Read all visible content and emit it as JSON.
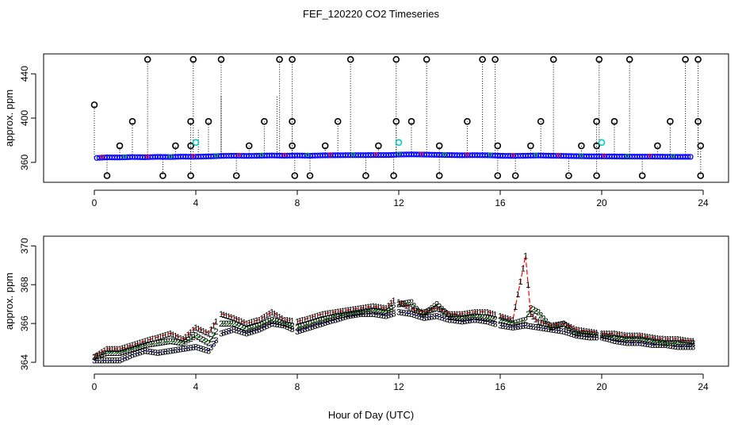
{
  "figure": {
    "title": "FEF_120220  CO2 Timeseries",
    "xlabel": "Hour of Day (UTC)"
  },
  "chart_data": [
    {
      "type": "scatter",
      "ylabel": "approx. ppm",
      "xlim": [
        -2,
        25
      ],
      "ylim": [
        342,
        458
      ],
      "x_ticks": [
        0,
        4,
        8,
        12,
        16,
        20,
        24
      ],
      "y_ticks": [
        360,
        400,
        440
      ],
      "base_series": {
        "name": "baseline",
        "color": "#0000ff",
        "points": [
          [
            0.1,
            364
          ],
          [
            0.5,
            364.5
          ],
          [
            1.0,
            364.4
          ],
          [
            1.5,
            364.8
          ],
          [
            2.0,
            364.6
          ],
          [
            2.5,
            365
          ],
          [
            3.0,
            364.8
          ],
          [
            3.5,
            365.2
          ],
          [
            3.9,
            365
          ],
          [
            4.2,
            365.2
          ],
          [
            4.6,
            365.4
          ],
          [
            5.0,
            365.8
          ],
          [
            5.5,
            366
          ],
          [
            6.0,
            365.8
          ],
          [
            6.5,
            366
          ],
          [
            7.0,
            366.2
          ],
          [
            7.5,
            366
          ],
          [
            8.0,
            366.2
          ],
          [
            8.5,
            366
          ],
          [
            9.0,
            366.3
          ],
          [
            9.5,
            366.4
          ],
          [
            10.0,
            366.5
          ],
          [
            10.5,
            366.5
          ],
          [
            11.0,
            366.6
          ],
          [
            11.6,
            366.6
          ],
          [
            12.0,
            367
          ],
          [
            12.5,
            367.2
          ],
          [
            13.0,
            367
          ],
          [
            13.5,
            366.8
          ],
          [
            14.0,
            366.6
          ],
          [
            14.5,
            366.4
          ],
          [
            15.0,
            366.5
          ],
          [
            15.5,
            366.4
          ],
          [
            16.0,
            366
          ],
          [
            16.5,
            365.8
          ],
          [
            17.0,
            366
          ],
          [
            17.5,
            366.2
          ],
          [
            18.0,
            366
          ],
          [
            18.5,
            365.8
          ],
          [
            19.0,
            365.6
          ],
          [
            19.5,
            365.4
          ],
          [
            20.0,
            365.4
          ],
          [
            20.5,
            365.3
          ],
          [
            21.0,
            365.2
          ],
          [
            21.5,
            365.2
          ],
          [
            22.0,
            365.2
          ],
          [
            22.5,
            365.1
          ],
          [
            23.0,
            365
          ],
          [
            23.6,
            365
          ]
        ]
      },
      "spikes": [
        {
          "x": 0.0,
          "y": 412
        },
        {
          "x": 2.1,
          "y": 453
        },
        {
          "x": 3.9,
          "y": 453
        },
        {
          "x": 5.0,
          "y": 453
        },
        {
          "x": 7.3,
          "y": 453
        },
        {
          "x": 7.8,
          "y": 453
        },
        {
          "x": 10.1,
          "y": 453
        },
        {
          "x": 11.9,
          "y": 453
        },
        {
          "x": 13.1,
          "y": 453
        },
        {
          "x": 15.3,
          "y": 453
        },
        {
          "x": 15.8,
          "y": 453
        },
        {
          "x": 18.1,
          "y": 453
        },
        {
          "x": 19.9,
          "y": 453
        },
        {
          "x": 21.1,
          "y": 453
        },
        {
          "x": 23.3,
          "y": 453
        },
        {
          "x": 23.8,
          "y": 453
        },
        {
          "x": 1.5,
          "y": 397
        },
        {
          "x": 3.8,
          "y": 397
        },
        {
          "x": 4.5,
          "y": 397
        },
        {
          "x": 6.7,
          "y": 397
        },
        {
          "x": 7.8,
          "y": 397
        },
        {
          "x": 9.6,
          "y": 397
        },
        {
          "x": 11.9,
          "y": 397
        },
        {
          "x": 12.5,
          "y": 397
        },
        {
          "x": 14.7,
          "y": 397
        },
        {
          "x": 17.6,
          "y": 397
        },
        {
          "x": 19.8,
          "y": 397
        },
        {
          "x": 20.5,
          "y": 397
        },
        {
          "x": 22.7,
          "y": 397
        },
        {
          "x": 23.8,
          "y": 397
        },
        {
          "x": 1.0,
          "y": 375
        },
        {
          "x": 3.2,
          "y": 375
        },
        {
          "x": 3.8,
          "y": 375
        },
        {
          "x": 6.1,
          "y": 375
        },
        {
          "x": 7.8,
          "y": 375
        },
        {
          "x": 9.1,
          "y": 375
        },
        {
          "x": 11.2,
          "y": 375
        },
        {
          "x": 13.6,
          "y": 375
        },
        {
          "x": 15.9,
          "y": 375
        },
        {
          "x": 17.2,
          "y": 375
        },
        {
          "x": 19.2,
          "y": 375
        },
        {
          "x": 19.8,
          "y": 375
        },
        {
          "x": 22.2,
          "y": 375
        },
        {
          "x": 23.9,
          "y": 375
        },
        {
          "x": 0.5,
          "y": 348
        },
        {
          "x": 2.7,
          "y": 348
        },
        {
          "x": 3.8,
          "y": 348
        },
        {
          "x": 5.6,
          "y": 348
        },
        {
          "x": 7.9,
          "y": 348
        },
        {
          "x": 8.5,
          "y": 348
        },
        {
          "x": 10.7,
          "y": 348
        },
        {
          "x": 11.8,
          "y": 348
        },
        {
          "x": 13.6,
          "y": 348
        },
        {
          "x": 15.9,
          "y": 348
        },
        {
          "x": 16.6,
          "y": 348
        },
        {
          "x": 18.7,
          "y": 348
        },
        {
          "x": 19.8,
          "y": 348
        },
        {
          "x": 21.6,
          "y": 348
        },
        {
          "x": 23.9,
          "y": 348
        }
      ],
      "cyan_points": [
        {
          "x": 4.0,
          "y": 378
        },
        {
          "x": 12.0,
          "y": 378
        },
        {
          "x": 20.0,
          "y": 378
        }
      ],
      "extra_vlines": [
        {
          "x": 4.1,
          "y0": 365,
          "y1": 390
        },
        {
          "x": 5.0,
          "y0": 365,
          "y1": 420
        },
        {
          "x": 7.2,
          "y0": 365,
          "y1": 420
        }
      ]
    },
    {
      "type": "line",
      "ylabel": "approx. ppm",
      "xlim": [
        -2,
        25
      ],
      "ylim": [
        363.8,
        370.5
      ],
      "x_ticks": [
        0,
        4,
        8,
        12,
        16,
        20,
        24
      ],
      "y_ticks": [
        364,
        366,
        368,
        370
      ],
      "gap_ranges": [
        [
          4.85,
          4.95
        ],
        [
          7.85,
          7.95
        ],
        [
          11.85,
          11.95
        ],
        [
          15.85,
          15.95
        ],
        [
          19.85,
          19.95
        ]
      ],
      "series": [
        {
          "name": "1",
          "color": "#ff0000",
          "points": [
            [
              0,
              364.3
            ],
            [
              0.5,
              364.7
            ],
            [
              1.0,
              364.7
            ],
            [
              1.5,
              364.9
            ],
            [
              2.0,
              365.1
            ],
            [
              2.5,
              365.3
            ],
            [
              3.0,
              365.5
            ],
            [
              3.5,
              365.2
            ],
            [
              4.0,
              365.8
            ],
            [
              4.5,
              365.5
            ],
            [
              5.0,
              366.5
            ],
            [
              5.5,
              366.3
            ],
            [
              6.0,
              366
            ],
            [
              6.5,
              366.2
            ],
            [
              7.0,
              366.6
            ],
            [
              7.5,
              366.2
            ],
            [
              8.0,
              366.1
            ],
            [
              8.5,
              366.3
            ],
            [
              9.0,
              366.5
            ],
            [
              9.5,
              366.6
            ],
            [
              10.0,
              366.7
            ],
            [
              10.5,
              366.8
            ],
            [
              11.0,
              366.9
            ],
            [
              11.5,
              366.8
            ],
            [
              11.8,
              367.2
            ],
            [
              12.2,
              367
            ],
            [
              12.6,
              366.7
            ],
            [
              13.0,
              366.6
            ],
            [
              13.5,
              366.8
            ],
            [
              14.0,
              366.5
            ],
            [
              14.5,
              366.5
            ],
            [
              15.0,
              366.6
            ],
            [
              15.5,
              366.6
            ],
            [
              16.0,
              366.4
            ],
            [
              16.5,
              366.2
            ],
            [
              17.0,
              369.5
            ],
            [
              17.2,
              366.5
            ],
            [
              17.5,
              366.1
            ],
            [
              18.0,
              365.9
            ],
            [
              18.5,
              366
            ],
            [
              19.0,
              365.7
            ],
            [
              19.5,
              365.6
            ],
            [
              20.0,
              365.5
            ],
            [
              20.5,
              365.5
            ],
            [
              21.0,
              365.4
            ],
            [
              21.5,
              365.4
            ],
            [
              22.0,
              365.3
            ],
            [
              22.5,
              365.2
            ],
            [
              23.0,
              365.2
            ],
            [
              23.6,
              365.1
            ]
          ]
        },
        {
          "name": "2",
          "color": "#00bb00",
          "points": [
            [
              0,
              364.3
            ],
            [
              0.5,
              364.5
            ],
            [
              1.0,
              364.5
            ],
            [
              1.5,
              364.7
            ],
            [
              2.0,
              364.9
            ],
            [
              2.5,
              365
            ],
            [
              3.0,
              365.1
            ],
            [
              3.5,
              365
            ],
            [
              4.0,
              365.4
            ],
            [
              4.5,
              365
            ],
            [
              5.0,
              366
            ],
            [
              5.5,
              366
            ],
            [
              6.0,
              365.7
            ],
            [
              6.5,
              365.9
            ],
            [
              7.0,
              366.2
            ],
            [
              7.5,
              366
            ],
            [
              8.0,
              365.8
            ],
            [
              8.5,
              366
            ],
            [
              9.0,
              366.2
            ],
            [
              9.5,
              366.4
            ],
            [
              10.0,
              366.5
            ],
            [
              10.5,
              366.6
            ],
            [
              11.0,
              366.7
            ],
            [
              11.5,
              366.6
            ],
            [
              12.0,
              367
            ],
            [
              12.5,
              367.1
            ],
            [
              12.8,
              366.6
            ],
            [
              13.0,
              366.5
            ],
            [
              13.5,
              367
            ],
            [
              14.0,
              366.4
            ],
            [
              14.5,
              366.3
            ],
            [
              15.0,
              366.4
            ],
            [
              15.5,
              366.3
            ],
            [
              16.0,
              366.2
            ],
            [
              16.5,
              366
            ],
            [
              17.0,
              366.2
            ],
            [
              17.2,
              366.8
            ],
            [
              17.5,
              366.6
            ],
            [
              18.0,
              365.8
            ],
            [
              18.5,
              366
            ],
            [
              19.0,
              365.5
            ],
            [
              19.5,
              365.5
            ],
            [
              20.0,
              365.4
            ],
            [
              20.5,
              365.3
            ],
            [
              21.0,
              365.2
            ],
            [
              21.5,
              365.2
            ],
            [
              22.0,
              365.1
            ],
            [
              22.5,
              365
            ],
            [
              23.0,
              365
            ],
            [
              23.6,
              365
            ]
          ]
        },
        {
          "name": "3",
          "color": "#0000ff",
          "points": [
            [
              0,
              364.1
            ],
            [
              0.5,
              364.1
            ],
            [
              1.0,
              364.1
            ],
            [
              1.5,
              364.4
            ],
            [
              2.0,
              364.6
            ],
            [
              2.5,
              364.5
            ],
            [
              3.0,
              364.6
            ],
            [
              3.5,
              364.7
            ],
            [
              4.0,
              364.8
            ],
            [
              4.5,
              364.6
            ],
            [
              5.0,
              365.5
            ],
            [
              5.5,
              365.7
            ],
            [
              6.0,
              365.5
            ],
            [
              6.5,
              365.7
            ],
            [
              7.0,
              366
            ],
            [
              7.5,
              365.9
            ],
            [
              8.0,
              365.6
            ],
            [
              8.5,
              365.8
            ],
            [
              9.0,
              366
            ],
            [
              9.5,
              366.2
            ],
            [
              10.0,
              366.4
            ],
            [
              10.5,
              366.5
            ],
            [
              11.0,
              366.5
            ],
            [
              11.5,
              366.4
            ],
            [
              12.0,
              366.6
            ],
            [
              12.5,
              366.5
            ],
            [
              13.0,
              366.3
            ],
            [
              13.5,
              366.4
            ],
            [
              14.0,
              366.2
            ],
            [
              14.5,
              366.1
            ],
            [
              15.0,
              366.2
            ],
            [
              15.5,
              366.1
            ],
            [
              16.0,
              365.9
            ],
            [
              16.5,
              365.8
            ],
            [
              17.0,
              365.9
            ],
            [
              17.5,
              365.8
            ],
            [
              18.0,
              365.7
            ],
            [
              18.5,
              365.6
            ],
            [
              19.0,
              365.4
            ],
            [
              19.5,
              365.3
            ],
            [
              20.0,
              365.3
            ],
            [
              20.5,
              365.1
            ],
            [
              21.0,
              365
            ],
            [
              21.5,
              365
            ],
            [
              22.0,
              364.9
            ],
            [
              22.5,
              364.9
            ],
            [
              23.0,
              364.8
            ],
            [
              23.6,
              364.8
            ]
          ]
        }
      ]
    }
  ]
}
